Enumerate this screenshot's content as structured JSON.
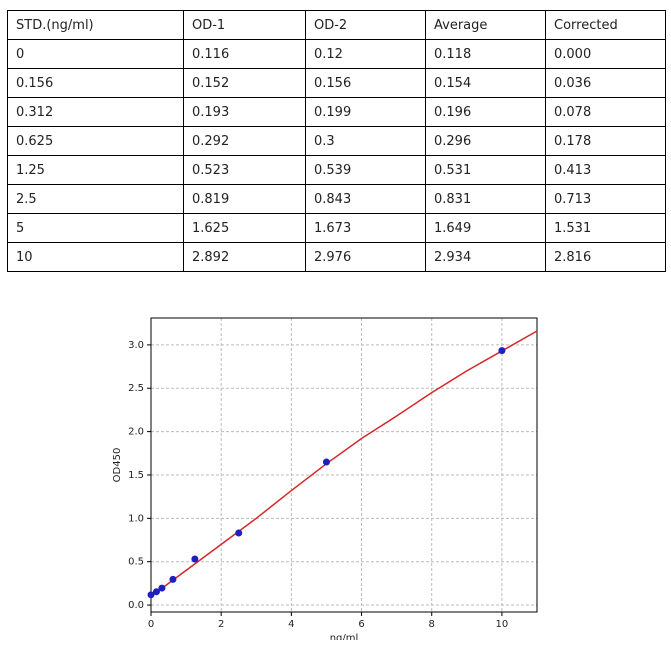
{
  "table": {
    "header": [
      "STD.(ng/ml)",
      "OD-1",
      "OD-2",
      "Average",
      "Corrected"
    ],
    "rows": [
      [
        "0",
        "0.116",
        "0.12",
        "0.118",
        "0.000"
      ],
      [
        "0.156",
        "0.152",
        "0.156",
        "0.154",
        "0.036"
      ],
      [
        "0.312",
        "0.193",
        "0.199",
        "0.196",
        "0.078"
      ],
      [
        "0.625",
        "0.292",
        "0.3",
        "0.296",
        "0.178"
      ],
      [
        "1.25",
        "0.523",
        "0.539",
        "0.531",
        "0.413"
      ],
      [
        "2.5",
        "0.819",
        "0.843",
        "0.831",
        "0.713"
      ],
      [
        "5",
        "1.625",
        "1.673",
        "1.649",
        "1.531"
      ],
      [
        "10",
        "2.892",
        "2.976",
        "2.934",
        "2.816"
      ]
    ]
  },
  "chart_data": {
    "type": "scatter",
    "xlabel": "ng/ml",
    "ylabel": "OD450",
    "x": [
      0,
      0.156,
      0.312,
      0.625,
      1.25,
      2.5,
      5,
      10
    ],
    "values": [
      0.118,
      0.154,
      0.196,
      0.296,
      0.531,
      0.831,
      1.649,
      2.934
    ],
    "color": "#1f1fbf",
    "fit": {
      "color": "#d62728",
      "x": [
        0,
        1,
        2,
        3,
        4,
        5,
        6,
        7,
        8,
        9,
        10,
        11
      ],
      "values": [
        0.1,
        0.4,
        0.7,
        1.0,
        1.32,
        1.63,
        1.92,
        2.18,
        2.45,
        2.7,
        2.93,
        3.16
      ]
    },
    "xlim": [
      0,
      11
    ],
    "ylim": [
      -0.08,
      3.31
    ],
    "xticks": [
      0,
      2,
      4,
      6,
      8,
      10
    ],
    "yticks": [
      {
        "value": 0,
        "label": "0.0"
      },
      {
        "value": 0.5,
        "label": "0.5"
      },
      {
        "value": 1,
        "label": "1.0"
      },
      {
        "value": 1.5,
        "label": "1.5"
      },
      {
        "value": 2,
        "label": "2.0"
      },
      {
        "value": 2.5,
        "label": "2.5"
      },
      {
        "value": 3,
        "label": "3.0"
      }
    ],
    "grid": true
  }
}
